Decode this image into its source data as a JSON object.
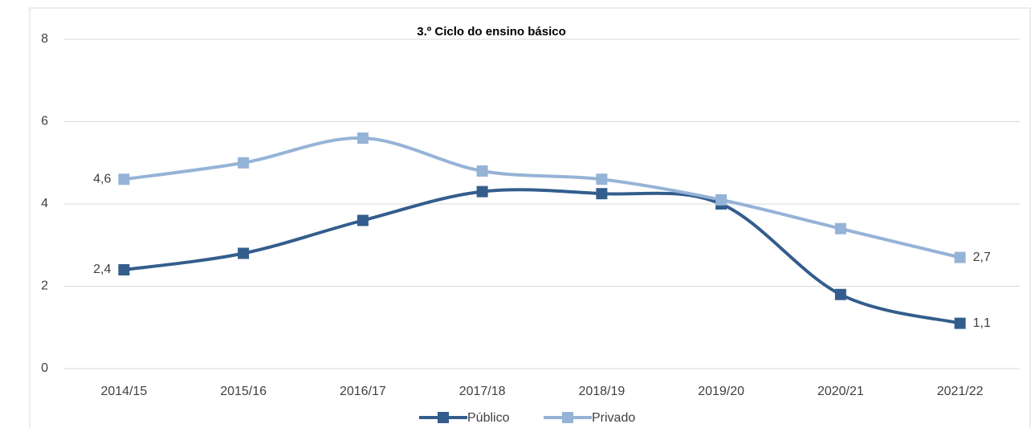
{
  "chart_data": {
    "type": "line",
    "title": "3.º Ciclo do ensino básico",
    "categories": [
      "2014/15",
      "2015/16",
      "2016/17",
      "2017/18",
      "2018/19",
      "2019/20",
      "2020/21",
      "2021/22"
    ],
    "series": [
      {
        "name": "Público",
        "color": "#335d8c",
        "values": [
          2.4,
          2.8,
          3.6,
          4.3,
          4.25,
          4.0,
          1.8,
          1.1
        ],
        "value_labels": [
          "2,4",
          null,
          null,
          null,
          null,
          null,
          null,
          "1,1"
        ]
      },
      {
        "name": "Privado",
        "color": "#95b3d7",
        "values": [
          4.6,
          5.0,
          5.6,
          4.8,
          4.6,
          4.1,
          3.4,
          2.7
        ],
        "value_labels": [
          "4,6",
          null,
          null,
          null,
          null,
          null,
          null,
          "2,7"
        ]
      }
    ],
    "ylim": [
      0,
      8
    ],
    "yticks": [
      0,
      2,
      4,
      6,
      8
    ],
    "grid": true,
    "legend": "bottom",
    "smooth": true
  }
}
